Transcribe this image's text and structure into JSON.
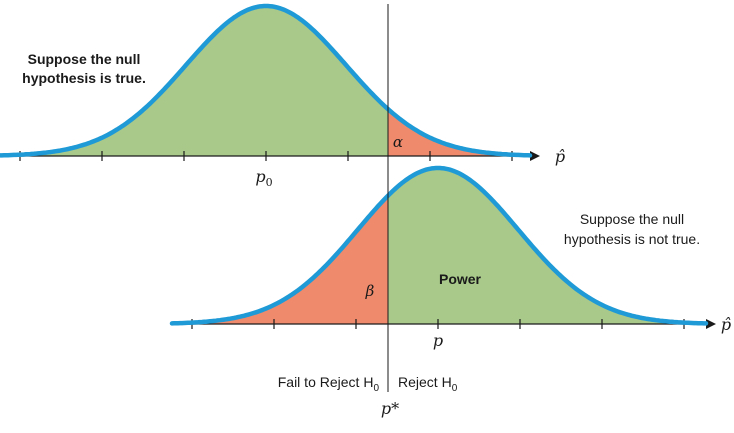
{
  "colors": {
    "curve": "#1f9ad6",
    "accept_fill": "#a8c98a",
    "reject_fill": "#ef8a6c",
    "line": "#1a1a1a"
  },
  "top_panel": {
    "note_line1": "Suppose the null",
    "note_line2": "hypothesis is true.",
    "alpha_label": "α",
    "center_label": "p",
    "center_subscript": "0",
    "axis_label": "p̂"
  },
  "bottom_panel": {
    "note_line1": "Suppose the null",
    "note_line2": "hypothesis is not true.",
    "beta_label": "β",
    "power_label": "Power",
    "center_label": "p",
    "axis_label": "p̂"
  },
  "critical": {
    "label": "p*",
    "fail_label": "Fail to Reject H",
    "fail_subscript": "0",
    "reject_label": "Reject H",
    "reject_subscript": "0"
  }
}
